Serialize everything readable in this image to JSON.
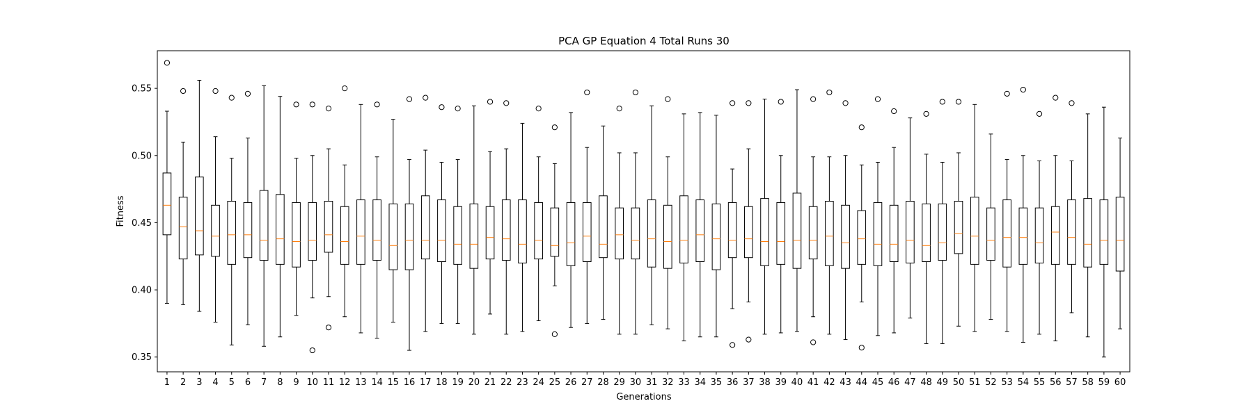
{
  "chart_data": {
    "type": "box",
    "title": "PCA GP Equation 4 Total Runs 30",
    "xlabel": "Generations",
    "ylabel": "Fitness",
    "ylim": [
      0.339,
      0.578
    ],
    "yticks": [
      "0.35",
      "0.40",
      "0.45",
      "0.50",
      "0.55"
    ],
    "grid": false,
    "colors": {
      "box": "#000000",
      "median": "#ff7f0e",
      "background": "#ffffff"
    },
    "categories": [
      "1",
      "2",
      "3",
      "4",
      "5",
      "6",
      "7",
      "8",
      "9",
      "10",
      "11",
      "12",
      "13",
      "14",
      "15",
      "16",
      "17",
      "18",
      "19",
      "20",
      "21",
      "22",
      "23",
      "24",
      "25",
      "26",
      "27",
      "28",
      "29",
      "30",
      "31",
      "32",
      "33",
      "34",
      "35",
      "36",
      "37",
      "38",
      "39",
      "40",
      "41",
      "42",
      "43",
      "44",
      "45",
      "46",
      "47",
      "48",
      "49",
      "50",
      "51",
      "52",
      "53",
      "54",
      "55",
      "56",
      "57",
      "58",
      "59",
      "60"
    ],
    "boxes": [
      {
        "whislo": 0.39,
        "q1": 0.441,
        "med": 0.463,
        "q3": 0.487,
        "whishi": 0.533,
        "fliers": [
          0.569
        ]
      },
      {
        "whislo": 0.389,
        "q1": 0.423,
        "med": 0.447,
        "q3": 0.469,
        "whishi": 0.51,
        "fliers": [
          0.548
        ]
      },
      {
        "whislo": 0.384,
        "q1": 0.426,
        "med": 0.444,
        "q3": 0.484,
        "whishi": 0.556,
        "fliers": []
      },
      {
        "whislo": 0.376,
        "q1": 0.425,
        "med": 0.44,
        "q3": 0.463,
        "whishi": 0.514,
        "fliers": [
          0.548
        ]
      },
      {
        "whislo": 0.359,
        "q1": 0.419,
        "med": 0.441,
        "q3": 0.466,
        "whishi": 0.498,
        "fliers": [
          0.543
        ]
      },
      {
        "whislo": 0.374,
        "q1": 0.424,
        "med": 0.441,
        "q3": 0.465,
        "whishi": 0.513,
        "fliers": [
          0.546
        ]
      },
      {
        "whislo": 0.358,
        "q1": 0.422,
        "med": 0.437,
        "q3": 0.474,
        "whishi": 0.552,
        "fliers": []
      },
      {
        "whislo": 0.365,
        "q1": 0.419,
        "med": 0.438,
        "q3": 0.471,
        "whishi": 0.544,
        "fliers": []
      },
      {
        "whislo": 0.381,
        "q1": 0.417,
        "med": 0.436,
        "q3": 0.465,
        "whishi": 0.498,
        "fliers": [
          0.538
        ]
      },
      {
        "whislo": 0.394,
        "q1": 0.422,
        "med": 0.437,
        "q3": 0.465,
        "whishi": 0.5,
        "fliers": [
          0.538,
          0.355
        ]
      },
      {
        "whislo": 0.395,
        "q1": 0.428,
        "med": 0.441,
        "q3": 0.466,
        "whishi": 0.505,
        "fliers": [
          0.535,
          0.372
        ]
      },
      {
        "whislo": 0.38,
        "q1": 0.419,
        "med": 0.436,
        "q3": 0.462,
        "whishi": 0.493,
        "fliers": [
          0.55
        ]
      },
      {
        "whislo": 0.368,
        "q1": 0.419,
        "med": 0.44,
        "q3": 0.467,
        "whishi": 0.538,
        "fliers": []
      },
      {
        "whislo": 0.364,
        "q1": 0.422,
        "med": 0.437,
        "q3": 0.467,
        "whishi": 0.499,
        "fliers": [
          0.538
        ]
      },
      {
        "whislo": 0.376,
        "q1": 0.415,
        "med": 0.433,
        "q3": 0.464,
        "whishi": 0.527,
        "fliers": []
      },
      {
        "whislo": 0.355,
        "q1": 0.415,
        "med": 0.437,
        "q3": 0.464,
        "whishi": 0.497,
        "fliers": [
          0.542
        ]
      },
      {
        "whislo": 0.369,
        "q1": 0.423,
        "med": 0.437,
        "q3": 0.47,
        "whishi": 0.504,
        "fliers": [
          0.543
        ]
      },
      {
        "whislo": 0.375,
        "q1": 0.421,
        "med": 0.437,
        "q3": 0.467,
        "whishi": 0.495,
        "fliers": [
          0.536
        ]
      },
      {
        "whislo": 0.375,
        "q1": 0.419,
        "med": 0.434,
        "q3": 0.462,
        "whishi": 0.497,
        "fliers": [
          0.535
        ]
      },
      {
        "whislo": 0.367,
        "q1": 0.416,
        "med": 0.434,
        "q3": 0.464,
        "whishi": 0.537,
        "fliers": []
      },
      {
        "whislo": 0.382,
        "q1": 0.423,
        "med": 0.439,
        "q3": 0.462,
        "whishi": 0.503,
        "fliers": [
          0.54
        ]
      },
      {
        "whislo": 0.367,
        "q1": 0.422,
        "med": 0.438,
        "q3": 0.467,
        "whishi": 0.505,
        "fliers": [
          0.539
        ]
      },
      {
        "whislo": 0.369,
        "q1": 0.42,
        "med": 0.434,
        "q3": 0.467,
        "whishi": 0.524,
        "fliers": []
      },
      {
        "whislo": 0.377,
        "q1": 0.423,
        "med": 0.437,
        "q3": 0.465,
        "whishi": 0.499,
        "fliers": [
          0.535
        ]
      },
      {
        "whislo": 0.403,
        "q1": 0.425,
        "med": 0.433,
        "q3": 0.461,
        "whishi": 0.494,
        "fliers": [
          0.521,
          0.367
        ]
      },
      {
        "whislo": 0.372,
        "q1": 0.418,
        "med": 0.435,
        "q3": 0.465,
        "whishi": 0.532,
        "fliers": []
      },
      {
        "whislo": 0.375,
        "q1": 0.421,
        "med": 0.44,
        "q3": 0.465,
        "whishi": 0.506,
        "fliers": [
          0.547
        ]
      },
      {
        "whislo": 0.378,
        "q1": 0.424,
        "med": 0.434,
        "q3": 0.47,
        "whishi": 0.522,
        "fliers": []
      },
      {
        "whislo": 0.367,
        "q1": 0.423,
        "med": 0.441,
        "q3": 0.461,
        "whishi": 0.502,
        "fliers": [
          0.535
        ]
      },
      {
        "whislo": 0.367,
        "q1": 0.423,
        "med": 0.437,
        "q3": 0.461,
        "whishi": 0.502,
        "fliers": [
          0.547
        ]
      },
      {
        "whislo": 0.374,
        "q1": 0.417,
        "med": 0.438,
        "q3": 0.467,
        "whishi": 0.537,
        "fliers": []
      },
      {
        "whislo": 0.371,
        "q1": 0.416,
        "med": 0.436,
        "q3": 0.463,
        "whishi": 0.499,
        "fliers": [
          0.542
        ]
      },
      {
        "whislo": 0.362,
        "q1": 0.42,
        "med": 0.437,
        "q3": 0.47,
        "whishi": 0.531,
        "fliers": []
      },
      {
        "whislo": 0.365,
        "q1": 0.421,
        "med": 0.441,
        "q3": 0.467,
        "whishi": 0.532,
        "fliers": []
      },
      {
        "whislo": 0.365,
        "q1": 0.415,
        "med": 0.438,
        "q3": 0.464,
        "whishi": 0.53,
        "fliers": []
      },
      {
        "whislo": 0.386,
        "q1": 0.424,
        "med": 0.437,
        "q3": 0.465,
        "whishi": 0.49,
        "fliers": [
          0.539,
          0.359
        ]
      },
      {
        "whislo": 0.391,
        "q1": 0.424,
        "med": 0.438,
        "q3": 0.462,
        "whishi": 0.505,
        "fliers": [
          0.539,
          0.363
        ]
      },
      {
        "whislo": 0.367,
        "q1": 0.418,
        "med": 0.436,
        "q3": 0.468,
        "whishi": 0.542,
        "fliers": []
      },
      {
        "whislo": 0.368,
        "q1": 0.419,
        "med": 0.436,
        "q3": 0.465,
        "whishi": 0.5,
        "fliers": [
          0.54
        ]
      },
      {
        "whislo": 0.369,
        "q1": 0.416,
        "med": 0.437,
        "q3": 0.472,
        "whishi": 0.549,
        "fliers": []
      },
      {
        "whislo": 0.38,
        "q1": 0.423,
        "med": 0.437,
        "q3": 0.462,
        "whishi": 0.499,
        "fliers": [
          0.542,
          0.361
        ]
      },
      {
        "whislo": 0.367,
        "q1": 0.418,
        "med": 0.44,
        "q3": 0.466,
        "whishi": 0.499,
        "fliers": [
          0.547
        ]
      },
      {
        "whislo": 0.363,
        "q1": 0.416,
        "med": 0.435,
        "q3": 0.463,
        "whishi": 0.5,
        "fliers": [
          0.539
        ]
      },
      {
        "whislo": 0.391,
        "q1": 0.419,
        "med": 0.438,
        "q3": 0.459,
        "whishi": 0.493,
        "fliers": [
          0.521,
          0.357
        ]
      },
      {
        "whislo": 0.366,
        "q1": 0.418,
        "med": 0.434,
        "q3": 0.465,
        "whishi": 0.495,
        "fliers": [
          0.542
        ]
      },
      {
        "whislo": 0.368,
        "q1": 0.421,
        "med": 0.434,
        "q3": 0.463,
        "whishi": 0.506,
        "fliers": [
          0.533
        ]
      },
      {
        "whislo": 0.379,
        "q1": 0.42,
        "med": 0.437,
        "q3": 0.466,
        "whishi": 0.528,
        "fliers": []
      },
      {
        "whislo": 0.36,
        "q1": 0.421,
        "med": 0.433,
        "q3": 0.464,
        "whishi": 0.501,
        "fliers": [
          0.531
        ]
      },
      {
        "whislo": 0.36,
        "q1": 0.422,
        "med": 0.435,
        "q3": 0.464,
        "whishi": 0.495,
        "fliers": [
          0.54
        ]
      },
      {
        "whislo": 0.373,
        "q1": 0.427,
        "med": 0.442,
        "q3": 0.466,
        "whishi": 0.502,
        "fliers": [
          0.54
        ]
      },
      {
        "whislo": 0.369,
        "q1": 0.419,
        "med": 0.44,
        "q3": 0.469,
        "whishi": 0.538,
        "fliers": []
      },
      {
        "whislo": 0.378,
        "q1": 0.422,
        "med": 0.437,
        "q3": 0.461,
        "whishi": 0.516,
        "fliers": []
      },
      {
        "whislo": 0.369,
        "q1": 0.417,
        "med": 0.439,
        "q3": 0.467,
        "whishi": 0.497,
        "fliers": [
          0.546
        ]
      },
      {
        "whislo": 0.361,
        "q1": 0.419,
        "med": 0.439,
        "q3": 0.461,
        "whishi": 0.5,
        "fliers": [
          0.549
        ]
      },
      {
        "whislo": 0.367,
        "q1": 0.42,
        "med": 0.435,
        "q3": 0.461,
        "whishi": 0.496,
        "fliers": [
          0.531
        ]
      },
      {
        "whislo": 0.362,
        "q1": 0.419,
        "med": 0.443,
        "q3": 0.462,
        "whishi": 0.5,
        "fliers": [
          0.543
        ]
      },
      {
        "whislo": 0.383,
        "q1": 0.419,
        "med": 0.439,
        "q3": 0.467,
        "whishi": 0.496,
        "fliers": [
          0.539
        ]
      },
      {
        "whislo": 0.365,
        "q1": 0.417,
        "med": 0.434,
        "q3": 0.468,
        "whishi": 0.531,
        "fliers": []
      },
      {
        "whislo": 0.35,
        "q1": 0.419,
        "med": 0.437,
        "q3": 0.467,
        "whishi": 0.536,
        "fliers": []
      },
      {
        "whislo": 0.371,
        "q1": 0.414,
        "med": 0.437,
        "q3": 0.469,
        "whishi": 0.513,
        "fliers": []
      }
    ]
  }
}
